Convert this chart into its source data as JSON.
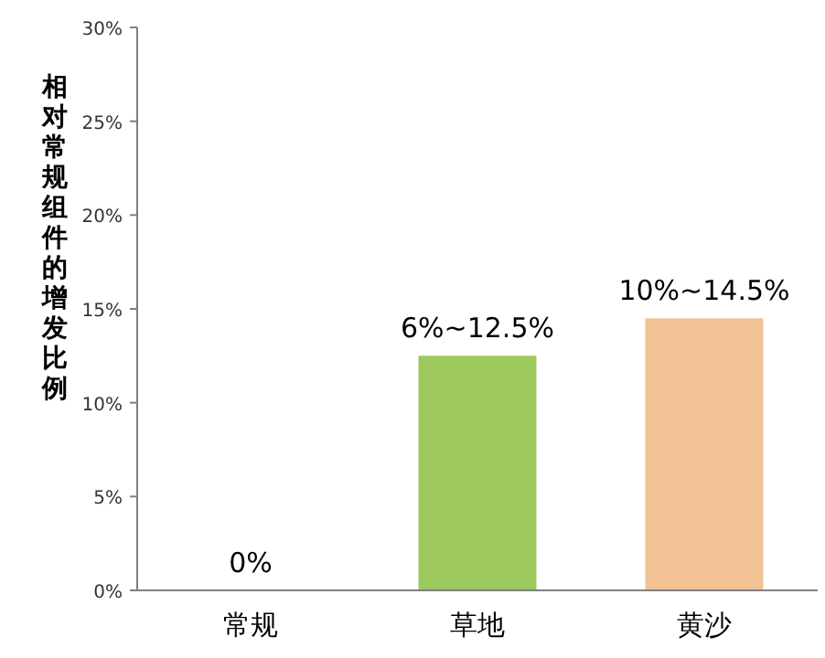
{
  "chart_data": {
    "type": "bar",
    "ylabel": "相对常规组件的增发比例",
    "categories": [
      "常规",
      "草地",
      "黄沙"
    ],
    "values": [
      0,
      12.5,
      14.5
    ],
    "colors": [
      "#9dc85c",
      "#9dc85c",
      "#f2c194"
    ],
    "value_labels": [
      "0%",
      "6%~12.5%",
      "10%~14.5%"
    ],
    "ylim": [
      0,
      30
    ],
    "yticks": [
      {
        "value": 0,
        "label": "0%"
      },
      {
        "value": 5,
        "label": "5%"
      },
      {
        "value": 10,
        "label": "10%"
      },
      {
        "value": 15,
        "label": "15%"
      },
      {
        "value": 20,
        "label": "20%"
      },
      {
        "value": 25,
        "label": "25%"
      },
      {
        "value": 30,
        "label": "30%"
      }
    ],
    "grid": false
  }
}
